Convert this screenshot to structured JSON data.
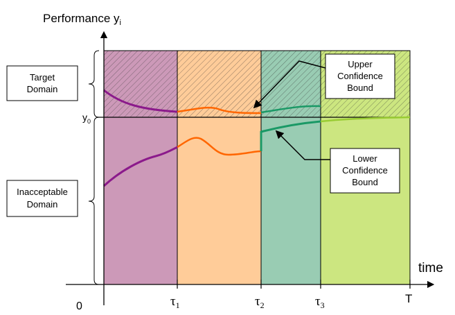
{
  "y_axis_title": "Performance y",
  "y_axis_sub": "i",
  "x_axis_title": "time",
  "y0_label": "y",
  "y0_sub": "0",
  "origin_label": "0",
  "ticks": [
    {
      "sym": "τ",
      "sub": "1"
    },
    {
      "sym": "τ",
      "sub": "2"
    },
    {
      "sym": "τ",
      "sub": "3"
    },
    {
      "sym": "T",
      "sub": ""
    }
  ],
  "target_domain": [
    "Target",
    "Domain"
  ],
  "inacceptable_domain": [
    "Inacceptable",
    "Domain"
  ],
  "upper_bound": [
    "Upper",
    "Confidence",
    "Bound"
  ],
  "lower_bound": [
    "Lower",
    "Confidence",
    "Bound"
  ],
  "colors": {
    "phase1": "#cc99b8",
    "phase2": "#ffcc99",
    "phase3": "#99ccb3",
    "phase4": "#cce680",
    "curve1": "#8b1a8b",
    "curve2": "#ff6600",
    "curve3": "#1a9966",
    "curve4": "#99cc33"
  }
}
